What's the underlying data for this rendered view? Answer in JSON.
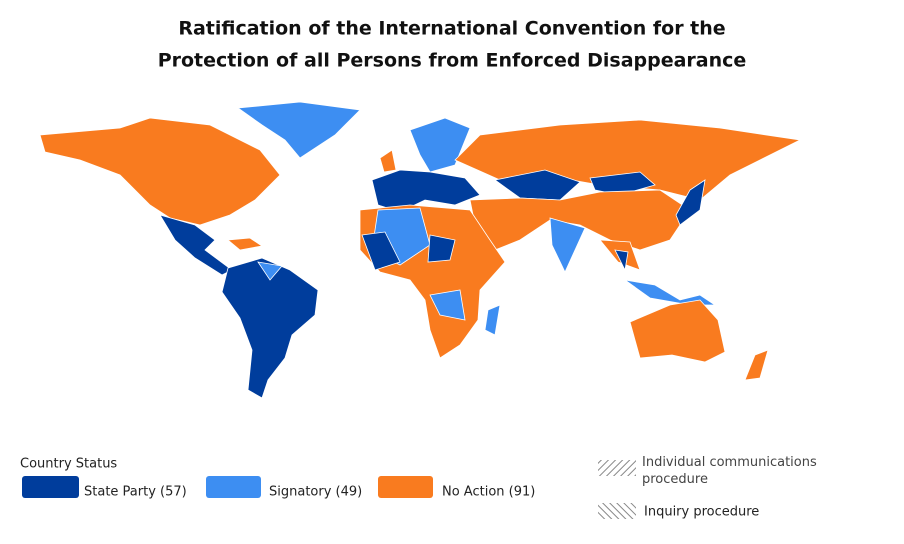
{
  "title": [
    "Ratification of the International Convention for the",
    "Protection of all Persons from Enforced Disappearance"
  ],
  "legend": {
    "heading": "Country Status",
    "items": [
      {
        "label": "State Party (57)",
        "color": "#003d9c"
      },
      {
        "label": "Signatory (49)",
        "color": "#3d8ef2"
      },
      {
        "label": "No Action (91)",
        "color": "#f97b1f"
      }
    ],
    "procedures": [
      "Individual communications procedure",
      "Inquiry procedure"
    ]
  }
}
